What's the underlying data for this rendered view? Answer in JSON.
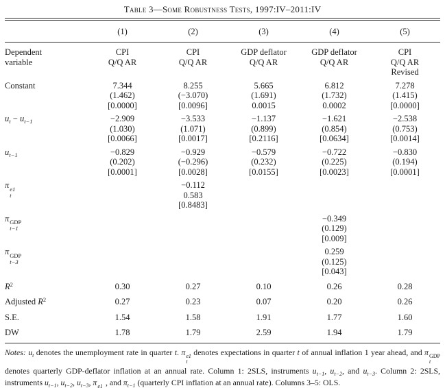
{
  "title": "Table 3—Some Robustness Tests, 1997:IV–2011:IV",
  "table": {
    "column_numbers": [
      "(1)",
      "(2)",
      "(3)",
      "(4)",
      "(5)"
    ],
    "dependent_variable_label": [
      "Dependent",
      "variable"
    ],
    "dependent_variables": [
      [
        "CPI",
        "Q/Q AR"
      ],
      [
        "CPI",
        "Q/Q AR"
      ],
      [
        "GDP deflator",
        "Q/Q AR"
      ],
      [
        "GDP deflator",
        "Q/Q AR"
      ],
      [
        "CPI",
        "Q/Q AR",
        "Revised"
      ]
    ],
    "rows": [
      {
        "name": "constant",
        "label": [
          {
            "n": "Constant"
          }
        ],
        "cells": [
          [
            "7.344",
            "(1.462)",
            "[0.0000]"
          ],
          [
            "8.255",
            "(−3.070)",
            "[0.0096]"
          ],
          [
            "5.665",
            "(1.691)",
            "0.0015"
          ],
          [
            "6.812",
            "(1.732)",
            "0.0002"
          ],
          [
            "7.278",
            "(1.415)",
            "[0.0000]"
          ]
        ]
      },
      {
        "name": "u-diff",
        "label": [
          {
            "i": "u"
          },
          {
            "sub": "t"
          },
          {
            "n": " − "
          },
          {
            "i": "u"
          },
          {
            "sub": "t−1"
          }
        ],
        "cells": [
          [
            "−2.909",
            "(1.030)",
            "[0.0066]"
          ],
          [
            "−3.533",
            "(1.071)",
            "[0.0017]"
          ],
          [
            "−1.137",
            "(0.899)",
            "[0.2116]"
          ],
          [
            "−1.621",
            "(0.854)",
            "[0.0634]"
          ],
          [
            "−2.538",
            "(0.753)",
            "[0.0014]"
          ]
        ]
      },
      {
        "name": "u-lag1",
        "label": [
          {
            "i": "u"
          },
          {
            "sub": "t−1"
          }
        ],
        "cells": [
          [
            "−0.829",
            "(0.202)",
            "[0.0001]"
          ],
          [
            "−0.929",
            "(−0.296)",
            "[0.0028]"
          ],
          [
            "−0.579",
            "(0.232)",
            "[0.0155]"
          ],
          [
            "−0.722",
            "(0.225)",
            "[0.0023]"
          ],
          [
            "−0.830",
            "(0.194)",
            "[0.0001]"
          ]
        ]
      },
      {
        "name": "pi-e1",
        "label": [
          {
            "i": "π"
          },
          {
            "stack": [
              "e1",
              "t"
            ]
          }
        ],
        "cells": [
          [],
          [
            "−0.112",
            "0.583",
            "[0.8483]"
          ],
          [],
          [],
          []
        ]
      },
      {
        "name": "pi-gdp-lag1",
        "label": [
          {
            "i": "π"
          },
          {
            "stack": [
              "GDP",
              "t−1"
            ]
          }
        ],
        "cells": [
          [],
          [],
          [],
          [
            "−0.349",
            "(0.129)",
            "[0.009]"
          ],
          []
        ]
      },
      {
        "name": "pi-gdp-lag3",
        "label": [
          {
            "i": "π"
          },
          {
            "stack": [
              "GDP",
              "t−3"
            ]
          }
        ],
        "cells": [
          [],
          [],
          [],
          [
            "0.259",
            "(0.125)",
            "[0.043]"
          ],
          []
        ]
      }
    ],
    "summary_rows": [
      {
        "name": "r-squared",
        "label": [
          {
            "i": "R"
          },
          {
            "sup": "2"
          }
        ],
        "cells": [
          "0.30",
          "0.27",
          "0.10",
          "0.26",
          "0.28"
        ]
      },
      {
        "name": "adjusted-r-squared",
        "label": [
          {
            "n": "Adjusted "
          },
          {
            "i": "R"
          },
          {
            "sup": "2"
          }
        ],
        "cells": [
          "0.27",
          "0.23",
          "0.07",
          "0.20",
          "0.26"
        ]
      },
      {
        "name": "standard-error",
        "label": [
          {
            "n": "S.E."
          }
        ],
        "cells": [
          "1.54",
          "1.58",
          "1.91",
          "1.77",
          "1.60"
        ]
      },
      {
        "name": "durbin-watson",
        "label": [
          {
            "n": "DW"
          }
        ],
        "cells": [
          "1.78",
          "1.79",
          "2.59",
          "1.94",
          "1.79"
        ]
      }
    ]
  },
  "notes_tokens": [
    {
      "i": "Notes: "
    },
    {
      "i": "u"
    },
    {
      "sub": "t"
    },
    {
      "n": " denotes the unemployment rate in quarter "
    },
    {
      "i": "t"
    },
    {
      "n": ". "
    },
    {
      "i": "π"
    },
    {
      "stack": [
        "e1",
        "t"
      ]
    },
    {
      "n": " denotes expectations in quarter "
    },
    {
      "i": "t"
    },
    {
      "n": " of annual inflation 1 year ahead, and "
    },
    {
      "i": "π"
    },
    {
      "stack": [
        "GDP",
        "t"
      ]
    },
    {
      "n": " denotes quarterly GDP-deflator inflation at an annual rate. Column 1: 2SLS, instruments "
    },
    {
      "i": "u"
    },
    {
      "sub": "t−1"
    },
    {
      "n": ", "
    },
    {
      "i": "u"
    },
    {
      "sub": "t−2"
    },
    {
      "n": ", and "
    },
    {
      "i": "u"
    },
    {
      "sub": "t−3"
    },
    {
      "n": ". Column 2: 2SLS, instruments "
    },
    {
      "i": "u"
    },
    {
      "sub": "t−1"
    },
    {
      "n": ", "
    },
    {
      "i": "u"
    },
    {
      "sub": "t−2"
    },
    {
      "n": ", "
    },
    {
      "i": "u"
    },
    {
      "sub": "t−3"
    },
    {
      "n": ", "
    },
    {
      "i": "π"
    },
    {
      "stack": [
        "e1",
        "t−1"
      ]
    },
    {
      "n": ", and "
    },
    {
      "i": "π"
    },
    {
      "sub": "t−1"
    },
    {
      "n": " (quarterly CPI inflation at an annual rate). Columns 3–5: OLS."
    }
  ]
}
